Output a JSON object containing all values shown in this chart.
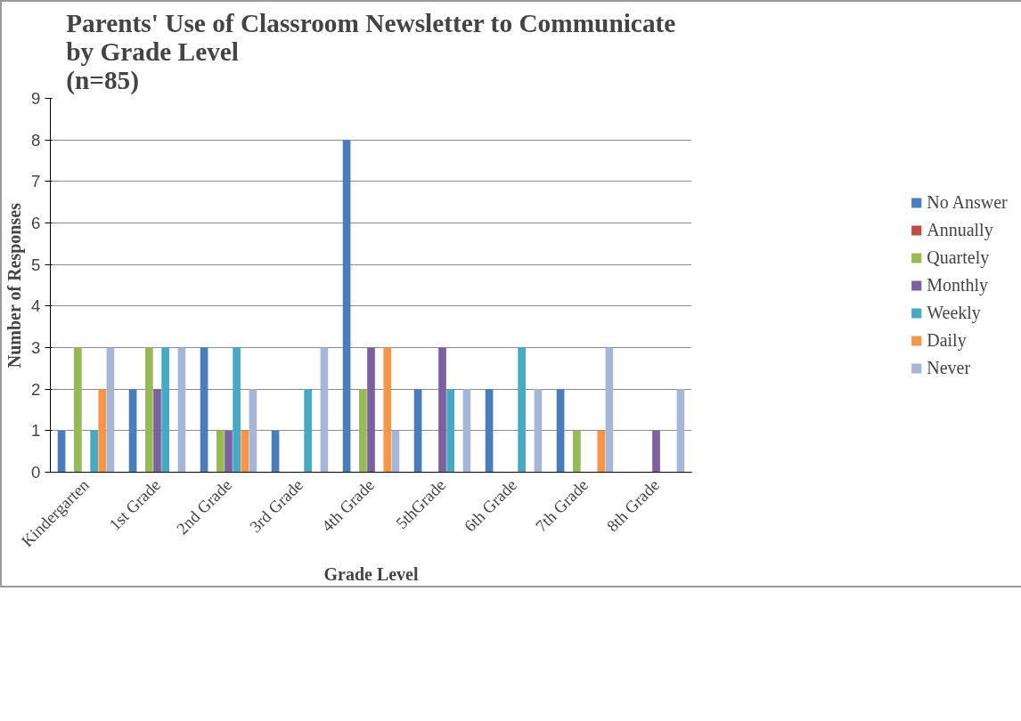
{
  "chart_data": {
    "type": "bar",
    "title": "Parents' Use of Classroom Newsletter to Communicate\nby Grade Level\n(n=85)",
    "xlabel": "Grade Level",
    "ylabel": "Number of Responses",
    "categories": [
      "Kindergarten",
      "1st Grade",
      "2nd Grade",
      "3rd Grade",
      "4th Grade",
      "5thGrade",
      "6th Grade",
      "7th Grade",
      "8th Grade"
    ],
    "series": [
      {
        "name": "No Answer",
        "color": "#4a7ebb",
        "values": [
          1,
          2,
          3,
          1,
          8,
          2,
          2,
          2,
          0
        ]
      },
      {
        "name": "Annually",
        "color": "#be4b48",
        "values": [
          0,
          0,
          0,
          0,
          0,
          0,
          0,
          0,
          0
        ]
      },
      {
        "name": "Quartely",
        "color": "#98b954",
        "values": [
          3,
          3,
          1,
          0,
          2,
          0,
          0,
          1,
          0
        ]
      },
      {
        "name": "Monthly",
        "color": "#7d60a0",
        "values": [
          0,
          2,
          1,
          0,
          3,
          3,
          0,
          0,
          1
        ]
      },
      {
        "name": "Weekly",
        "color": "#46aac5",
        "values": [
          1,
          3,
          3,
          2,
          0,
          2,
          3,
          0,
          0
        ]
      },
      {
        "name": "Daily",
        "color": "#f79646",
        "values": [
          2,
          0,
          1,
          0,
          3,
          0,
          0,
          1,
          0
        ]
      },
      {
        "name": "Never",
        "color": "#a5b6d9",
        "values": [
          3,
          3,
          2,
          3,
          1,
          2,
          2,
          3,
          2
        ]
      }
    ],
    "ylim": [
      0,
      9
    ],
    "yticks": [
      0,
      1,
      2,
      3,
      4,
      5,
      6,
      7,
      8,
      9
    ],
    "grid": "y",
    "legend": "right"
  }
}
